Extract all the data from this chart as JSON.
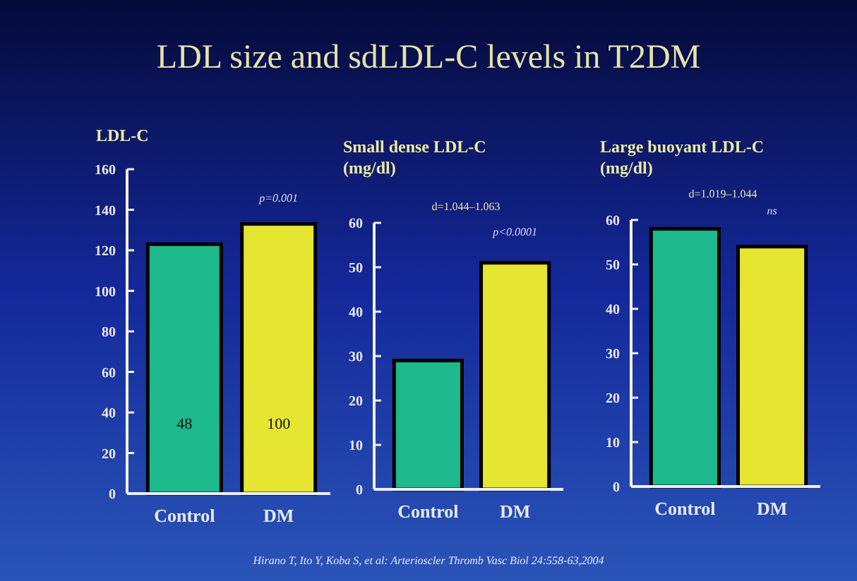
{
  "chart_data": [
    {
      "type": "other",
      "title": "LDL size and sdLDL-C levels in T2DM",
      "annotations": [
        "Hirano T, Ito Y, Koba S, et al: Arterioscler Thromb Vasc Biol 24:558-63,2004"
      ]
    },
    {
      "type": "bar",
      "title": "LDL-C",
      "categories": [
        "Control",
        "DM"
      ],
      "values": [
        123,
        133
      ],
      "colors": [
        "#1db88c",
        "#e6e632"
      ],
      "ylim": [
        0,
        160
      ],
      "yticks": [
        0,
        20,
        40,
        60,
        80,
        100,
        120,
        140,
        160
      ],
      "grid": false,
      "annotations": [
        "48",
        "100",
        "p=0.001"
      ]
    },
    {
      "type": "bar",
      "title": "Small dense LDL-C (mg/dl)",
      "categories": [
        "Control",
        "DM"
      ],
      "values": [
        29,
        51
      ],
      "colors": [
        "#1db88c",
        "#e6e632"
      ],
      "ylim": [
        0,
        60
      ],
      "yticks": [
        0,
        10,
        20,
        30,
        40,
        50,
        60
      ],
      "grid": false,
      "annotations": [
        "d=1.044–1.063",
        "p<0.0001"
      ]
    },
    {
      "type": "bar",
      "title": "Large buoyant LDL-C (mg/dl)",
      "categories": [
        "Control",
        "DM"
      ],
      "values": [
        58,
        54
      ],
      "colors": [
        "#1db88c",
        "#e6e632"
      ],
      "ylim": [
        0,
        60
      ],
      "yticks": [
        0,
        10,
        20,
        30,
        40,
        50,
        60
      ],
      "grid": false,
      "annotations": [
        "d=1.019–1.044",
        "ns"
      ]
    }
  ]
}
